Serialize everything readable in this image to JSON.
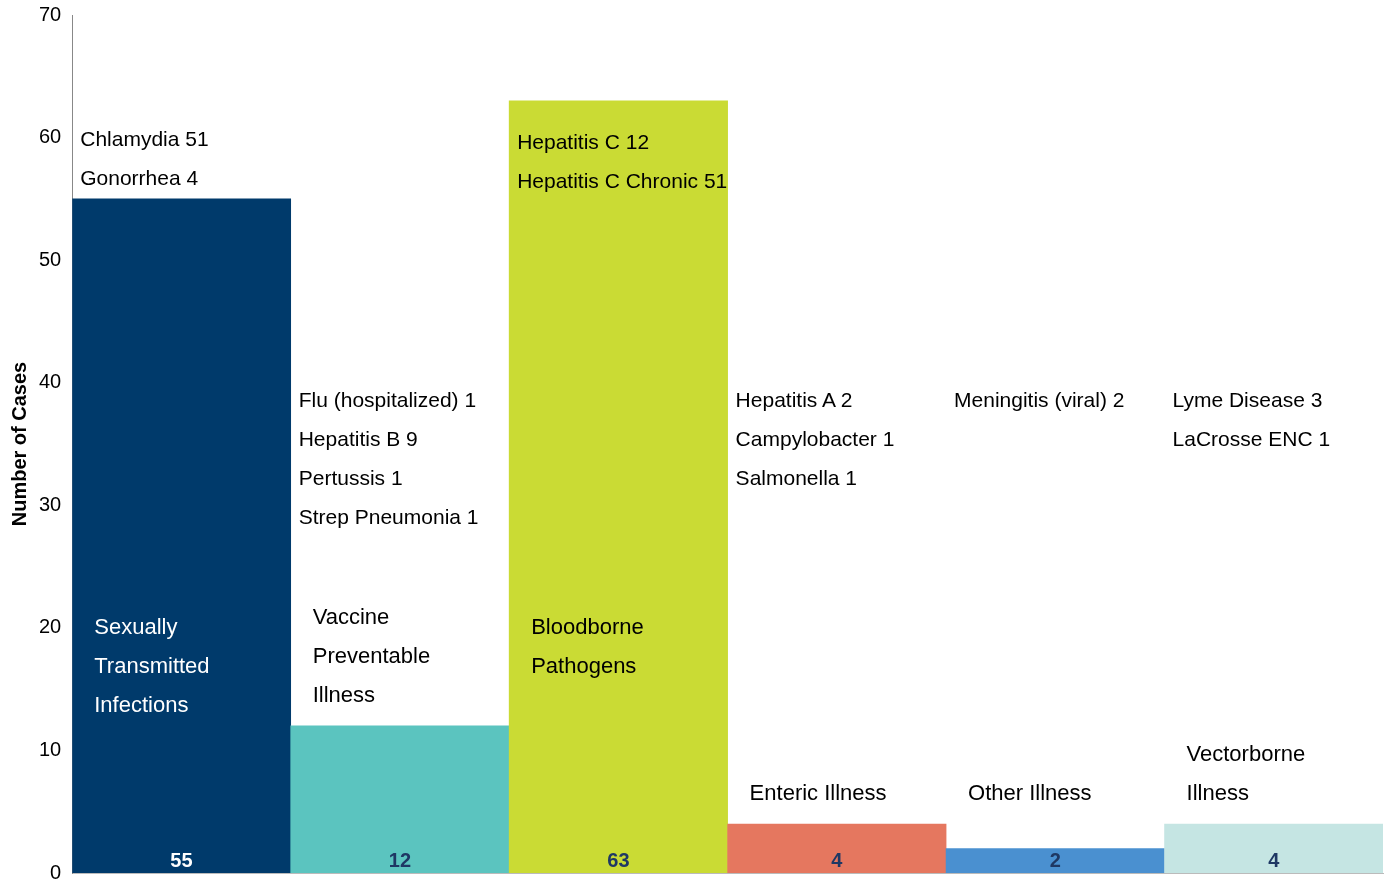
{
  "chart_data": {
    "type": "bar",
    "ylabel": "Number of Cases",
    "categories": [
      "Sexually Transmitted Infections",
      "Vaccine Preventable Illness",
      "Bloodborne Pathogens",
      "Enteric Illness",
      "Other Illness",
      "Vectorborne Illness"
    ],
    "values": [
      55,
      12,
      63,
      4,
      2,
      4
    ],
    "colors": [
      "#003a6b",
      "#5bc4bf",
      "#cadb34",
      "#e5775f",
      "#4a90d0",
      "#c5e5e3"
    ],
    "ylim": [
      0,
      70
    ],
    "yticks": [
      0,
      10,
      20,
      30,
      40,
      50,
      60,
      70
    ],
    "grid": false,
    "legend": false,
    "data_labels": true,
    "tick_labels": "y",
    "annotations": [
      "Chlamydia 51\nGonorrhea 4",
      "Flu (hospitalized) 1\nHepatitis B 9\nPertussis 1\nStrep Pneumonia 1",
      "Hepatitis C 12\nHepatitis C Chronic 51",
      "Hepatitis A 2\nCampylobacter 1\nSalmonella 1",
      "Meningitis (viral) 2",
      "Lyme Disease 3\nLaCrosse ENC 1"
    ]
  }
}
